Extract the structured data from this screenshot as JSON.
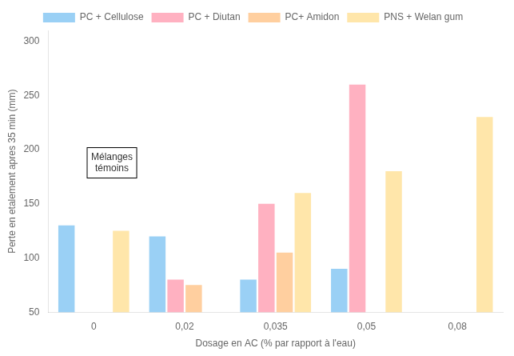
{
  "chart_data": {
    "type": "bar",
    "xlabel": "Dosage en AC (% par rapport à l'eau)",
    "ylabel": "Perte en etalement apres 35 min (mm)",
    "categories": [
      "0",
      "0,02",
      "0,035",
      "0,05",
      "0,08"
    ],
    "series": [
      {
        "name": "PC + Cellulose",
        "values": [
          130,
          120,
          80,
          90,
          null
        ]
      },
      {
        "name": "PC + Diutan",
        "values": [
          null,
          80,
          150,
          260,
          null
        ]
      },
      {
        "name": "PC+ Amidon",
        "values": [
          null,
          75,
          105,
          null,
          null
        ]
      },
      {
        "name": "PNS + Welan gum",
        "values": [
          125,
          null,
          160,
          180,
          230
        ]
      }
    ],
    "ylim": [
      50,
      310
    ],
    "yticks": [
      50,
      100,
      150,
      200,
      250,
      300
    ],
    "annotations": [
      {
        "text": "Mélanges\ntémoins"
      }
    ],
    "legend": "top",
    "grid": false
  }
}
